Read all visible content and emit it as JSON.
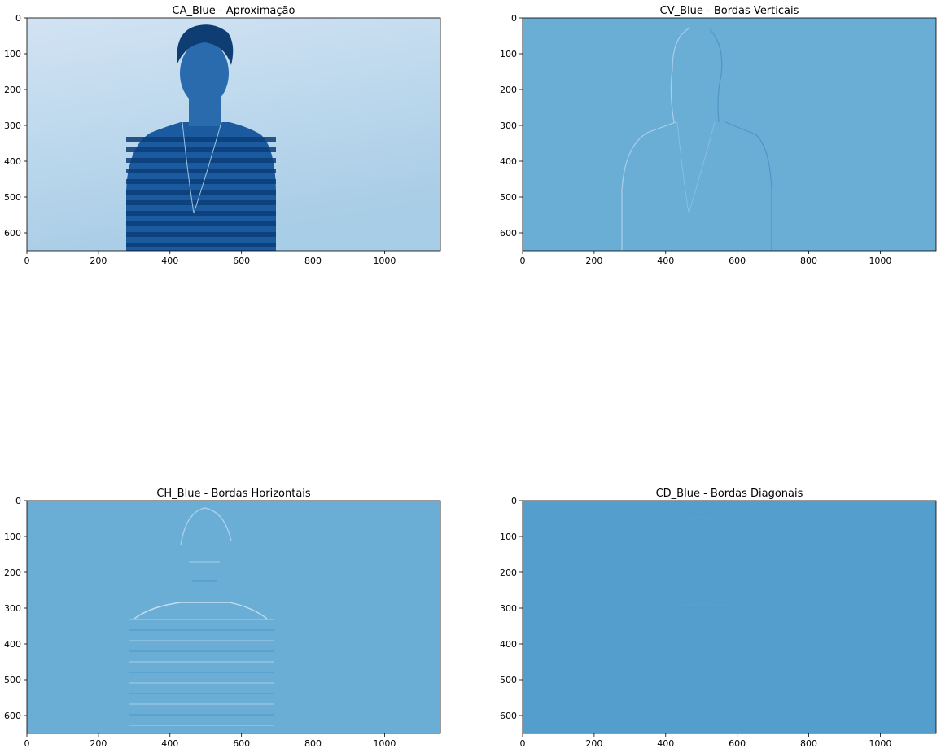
{
  "chart_data": [
    {
      "type": "image",
      "title": "CA_Blue - Aproximação",
      "xlim": [
        0,
        1156
      ],
      "ylim": [
        650,
        0
      ],
      "xticks": [
        "0",
        "200",
        "400",
        "600",
        "800",
        "1000"
      ],
      "yticks": [
        "0",
        "100",
        "200",
        "300",
        "400",
        "500",
        "600"
      ],
      "colormap": "Blues",
      "colors": {
        "background_top": "#d2e3f3",
        "background_bottom": "#a8cde6",
        "subject": "#1b5a9e",
        "stripe_dark": "#0b3e7a",
        "stripe_light": "#3a78b8"
      }
    },
    {
      "type": "image",
      "title": "CV_Blue - Bordas Verticais",
      "xlim": [
        0,
        1156
      ],
      "ylim": [
        650,
        0
      ],
      "xticks": [
        "0",
        "200",
        "400",
        "600",
        "800",
        "1000"
      ],
      "yticks": [
        "0",
        "100",
        "200",
        "300",
        "400",
        "500",
        "600"
      ],
      "colormap": "Blues",
      "colors": {
        "background": "#6aaed6",
        "edge_light": "#a9cfe8",
        "edge_dark": "#4f95c6"
      }
    },
    {
      "type": "image",
      "title": "CH_Blue - Bordas Horizontais",
      "xlim": [
        0,
        1156
      ],
      "ylim": [
        650,
        0
      ],
      "xticks": [
        "0",
        "200",
        "400",
        "600",
        "800",
        "1000"
      ],
      "yticks": [
        "0",
        "100",
        "200",
        "300",
        "400",
        "500",
        "600"
      ],
      "colormap": "Blues",
      "colors": {
        "background": "#6aaed6",
        "edge_light": "#a9cfe8",
        "edge_dark": "#4f95c6"
      }
    },
    {
      "type": "image",
      "title": "CD_Blue - Bordas Diagonais",
      "xlim": [
        0,
        1156
      ],
      "ylim": [
        650,
        0
      ],
      "xticks": [
        "0",
        "200",
        "400",
        "600",
        "800",
        "1000"
      ],
      "yticks": [
        "0",
        "100",
        "200",
        "300",
        "400",
        "500",
        "600"
      ],
      "colormap": "Blues",
      "colors": {
        "background": "#539ecd",
        "edge_light": "#5ea6d2",
        "edge_dark": "#4a95c6"
      }
    }
  ]
}
